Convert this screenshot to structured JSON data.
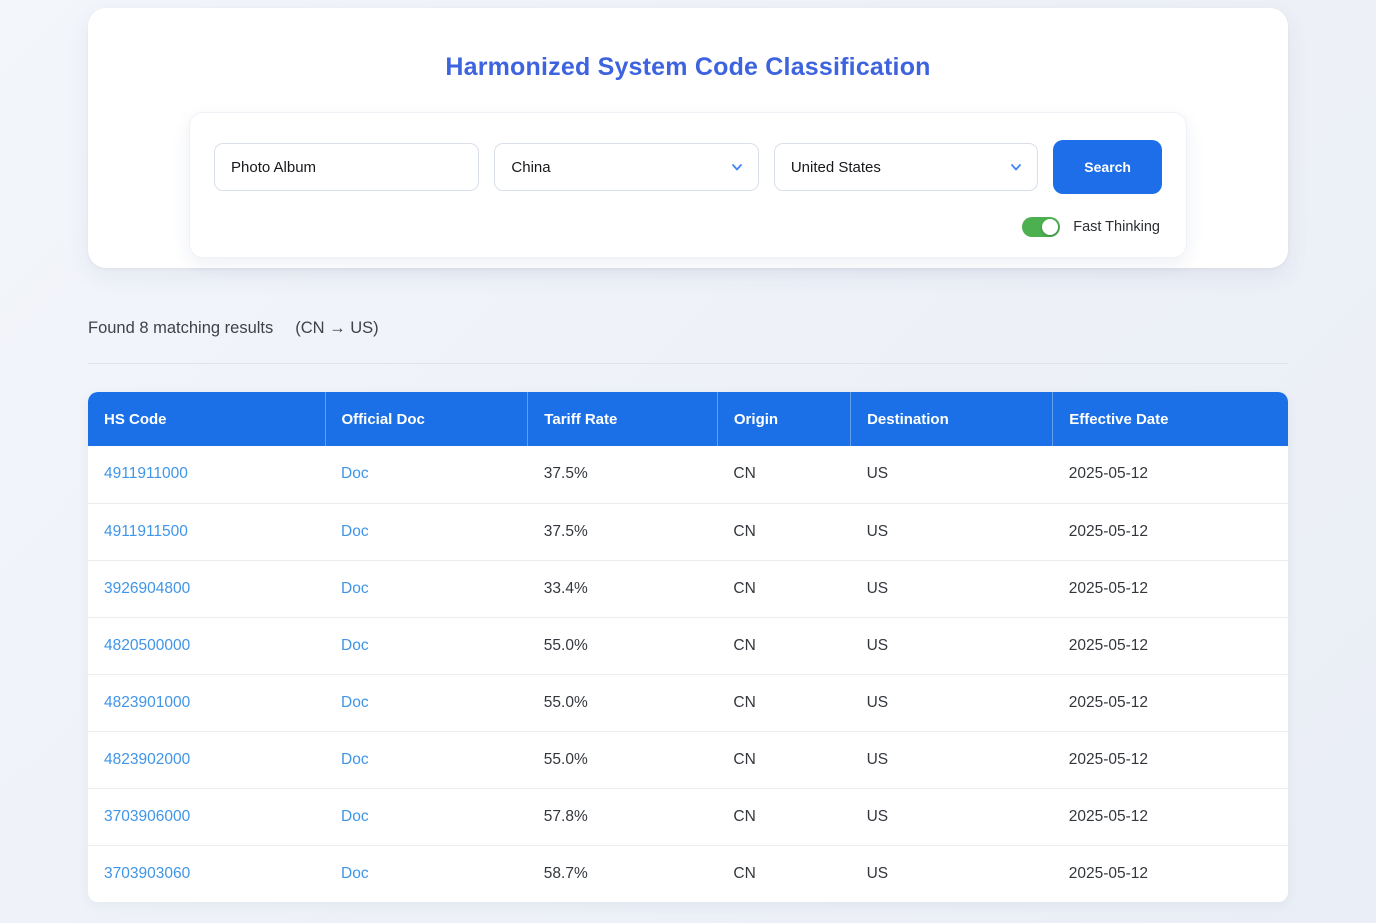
{
  "hero": {
    "title": "Harmonized System Code Classification"
  },
  "form": {
    "product_query": {
      "value": "Photo Album"
    },
    "origin_select": {
      "value": "China"
    },
    "destination_select": {
      "value": "United States"
    },
    "search_label": "Search",
    "fast_thinking": {
      "label": "Fast Thinking",
      "state": "on",
      "on_color": "#4caf50"
    }
  },
  "results": {
    "summary": "Found 8 matching results",
    "route": "(CN → US)"
  },
  "icons": {
    "chevron_down": "chevron-down",
    "chevron_color": "#4285f4"
  },
  "colors": {
    "accent_blue": "#1d6ee8",
    "title_blue": "#3d63df",
    "table_header_blue": "#1b70e7",
    "link_blue": "#3f95e8",
    "toggle_green": "#4caf50"
  },
  "table": {
    "columns": [
      {
        "key": "hs_code",
        "label": "HS Code",
        "link": true
      },
      {
        "key": "doc",
        "label": "Official Doc",
        "link": true
      },
      {
        "key": "tariff_rate",
        "label": "Tariff Rate",
        "link": false
      },
      {
        "key": "origin",
        "label": "Origin",
        "link": false
      },
      {
        "key": "destination",
        "label": "Destination",
        "link": false
      },
      {
        "key": "effective_date",
        "label": "Effective Date",
        "link": false
      }
    ],
    "rows": [
      {
        "hs_code": "4911911000",
        "doc": "Doc",
        "tariff_rate": "37.5%",
        "origin": "CN",
        "destination": "US",
        "effective_date": "2025-05-12"
      },
      {
        "hs_code": "4911911500",
        "doc": "Doc",
        "tariff_rate": "37.5%",
        "origin": "CN",
        "destination": "US",
        "effective_date": "2025-05-12"
      },
      {
        "hs_code": "3926904800",
        "doc": "Doc",
        "tariff_rate": "33.4%",
        "origin": "CN",
        "destination": "US",
        "effective_date": "2025-05-12"
      },
      {
        "hs_code": "4820500000",
        "doc": "Doc",
        "tariff_rate": "55.0%",
        "origin": "CN",
        "destination": "US",
        "effective_date": "2025-05-12"
      },
      {
        "hs_code": "4823901000",
        "doc": "Doc",
        "tariff_rate": "55.0%",
        "origin": "CN",
        "destination": "US",
        "effective_date": "2025-05-12"
      },
      {
        "hs_code": "4823902000",
        "doc": "Doc",
        "tariff_rate": "55.0%",
        "origin": "CN",
        "destination": "US",
        "effective_date": "2025-05-12"
      },
      {
        "hs_code": "3703906000",
        "doc": "Doc",
        "tariff_rate": "57.8%",
        "origin": "CN",
        "destination": "US",
        "effective_date": "2025-05-12"
      },
      {
        "hs_code": "3703903060",
        "doc": "Doc",
        "tariff_rate": "58.7%",
        "origin": "CN",
        "destination": "US",
        "effective_date": "2025-05-12"
      }
    ]
  }
}
